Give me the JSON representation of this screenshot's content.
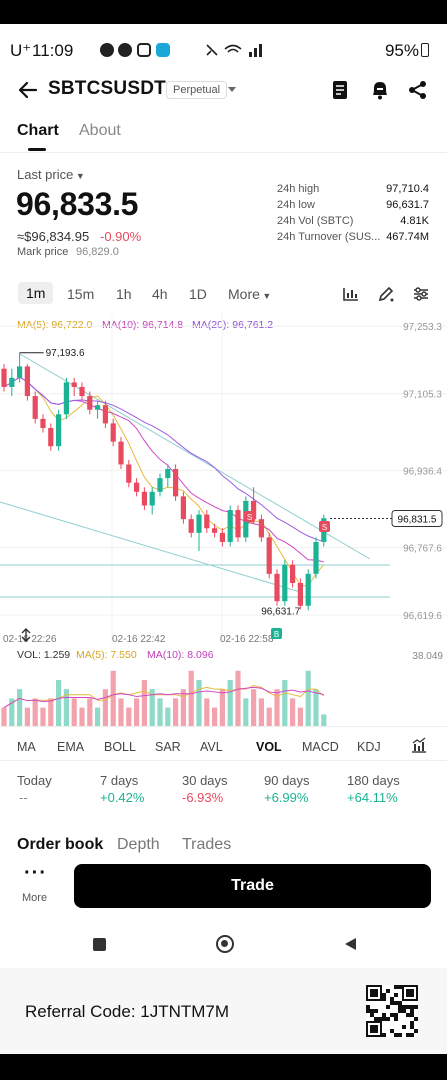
{
  "status_bar": {
    "time": "11:09",
    "carrier": "U⁺",
    "battery": "95%"
  },
  "header": {
    "symbol": "SBTCSUSDT",
    "badge": "Perpetual"
  },
  "tabs": [
    {
      "label": "Chart"
    },
    {
      "label": "About"
    }
  ],
  "price": {
    "last_label": "Last price",
    "last": "96,833.5",
    "usd": "≈$96,834.95",
    "change": "-0.90%",
    "mark_label": "Mark price",
    "mark": "96,829.0"
  },
  "stats": [
    {
      "label": "24h high",
      "value": "97,710.4"
    },
    {
      "label": "24h low",
      "value": "96,631.7"
    },
    {
      "label": "24h Vol (SBTC)",
      "value": "4.81K"
    },
    {
      "label": "24h Turnover (SUS...",
      "value": "467.74M"
    }
  ],
  "timeframes": [
    "1m",
    "15m",
    "1h",
    "4h",
    "1D",
    "More"
  ],
  "ma_legend": {
    "ma5": "MA(5): 96,722.0",
    "ma10": "MA(10): 96,714.8",
    "ma20": "MA(20): 96,761.2"
  },
  "colors": {
    "up": "#1bb394",
    "down": "#e84a5f",
    "ma5": "#e8b93a",
    "ma10": "#d147c7",
    "ma20": "#9b5de5"
  },
  "chart_data": {
    "type": "candlestick",
    "y_ticks": [
      "97,253.3",
      "97,105.3",
      "96,936.4",
      "96,767.6",
      "96,619.6"
    ],
    "x_ticks": [
      "02-16 22:26",
      "02-16 22:42",
      "02-16 22:58"
    ],
    "price_tag": "96,831.5",
    "high_annotation": "97,193.6",
    "low_annotation": "96,631.7",
    "ylim": [
      96600,
      97280
    ],
    "candles": [
      [
        97160,
        97170,
        97110,
        97120
      ],
      [
        97120,
        97160,
        97100,
        97140
      ],
      [
        97140,
        97195,
        97130,
        97165
      ],
      [
        97165,
        97170,
        97090,
        97100
      ],
      [
        97100,
        97110,
        97040,
        97050
      ],
      [
        97050,
        97060,
        97020,
        97030
      ],
      [
        97030,
        97040,
        96980,
        96990
      ],
      [
        96990,
        97070,
        96980,
        97060
      ],
      [
        97060,
        97140,
        97050,
        97130
      ],
      [
        97130,
        97140,
        97100,
        97120
      ],
      [
        97120,
        97130,
        97090,
        97100
      ],
      [
        97100,
        97110,
        97060,
        97070
      ],
      [
        97070,
        97090,
        97050,
        97080
      ],
      [
        97080,
        97090,
        97030,
        97040
      ],
      [
        97040,
        97050,
        96990,
        97000
      ],
      [
        97000,
        97010,
        96940,
        96950
      ],
      [
        96950,
        96960,
        96900,
        96910
      ],
      [
        96910,
        96920,
        96880,
        96890
      ],
      [
        96890,
        96900,
        96850,
        96860
      ],
      [
        96860,
        96900,
        96840,
        96890
      ],
      [
        96890,
        96930,
        96880,
        96920
      ],
      [
        96920,
        96950,
        96900,
        96940
      ],
      [
        96940,
        96950,
        96870,
        96880
      ],
      [
        96880,
        96890,
        96820,
        96830
      ],
      [
        96830,
        96840,
        96790,
        96800
      ],
      [
        96800,
        96850,
        96760,
        96840
      ],
      [
        96840,
        96850,
        96800,
        96810
      ],
      [
        96810,
        96820,
        96790,
        96800
      ],
      [
        96800,
        96810,
        96770,
        96780
      ],
      [
        96780,
        96860,
        96770,
        96850
      ],
      [
        96850,
        96860,
        96780,
        96790
      ],
      [
        96790,
        96880,
        96780,
        96870
      ],
      [
        96870,
        96900,
        96820,
        96830
      ],
      [
        96830,
        96840,
        96780,
        96790
      ],
      [
        96790,
        96800,
        96700,
        96710
      ],
      [
        96710,
        96720,
        96640,
        96650
      ],
      [
        96650,
        96740,
        96640,
        96730
      ],
      [
        96730,
        96740,
        96680,
        96690
      ],
      [
        96690,
        96700,
        96632,
        96640
      ],
      [
        96640,
        96720,
        96630,
        96710
      ],
      [
        96710,
        96790,
        96700,
        96780
      ],
      [
        96780,
        96840,
        96770,
        96832
      ]
    ],
    "volume": {
      "label": "VOL: 1.259",
      "ma5": "MA(5): 7.550",
      "ma10": "MA(10): 8.096",
      "max_label": "38.049",
      "values": [
        2,
        3,
        4,
        2,
        3,
        2,
        3,
        5,
        4,
        3,
        2,
        3,
        2,
        4,
        6,
        3,
        2,
        3,
        5,
        4,
        3,
        2,
        3,
        4,
        6,
        5,
        3,
        2,
        4,
        5,
        6,
        3,
        4,
        3,
        2,
        4,
        5,
        3,
        2,
        6,
        4,
        1.259
      ]
    }
  },
  "indicators": [
    "MA",
    "EMA",
    "BOLL",
    "SAR",
    "AVL",
    "VOL",
    "MACD",
    "KDJ"
  ],
  "periods": [
    {
      "label": "Today",
      "value": "--",
      "tone": "neutral"
    },
    {
      "label": "7 days",
      "value": "+0.42%",
      "tone": "up"
    },
    {
      "label": "30 days",
      "value": "-6.93%",
      "tone": "down"
    },
    {
      "label": "90 days",
      "value": "+6.99%",
      "tone": "up"
    },
    {
      "label": "180 days",
      "value": "+64.11%",
      "tone": "up"
    }
  ],
  "sub_tabs": [
    "Order book",
    "Depth",
    "Trades"
  ],
  "bottom": {
    "more_label": "More",
    "trade_label": "Trade"
  },
  "referral": {
    "text": "Referral Code: 1JTNTM7M"
  }
}
